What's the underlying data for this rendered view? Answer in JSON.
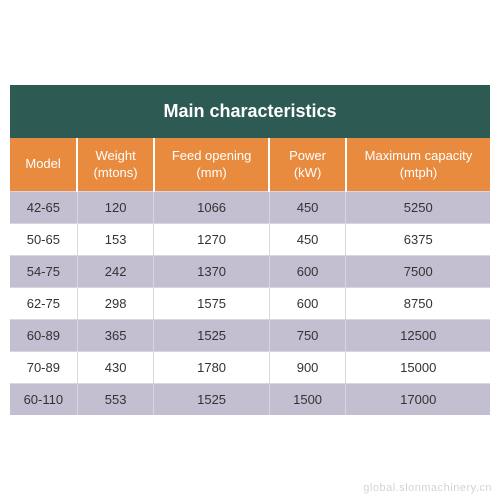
{
  "title": "Main characteristics",
  "title_bg": "#2e5a54",
  "title_color": "#ffffff",
  "title_fontsize": "18px",
  "header_bg": "#e98b3f",
  "header_border": "#ffffff",
  "row_alt_bg": "#c3bfd1",
  "row_bg": "#ffffff",
  "cell_border": "#d9d6e2",
  "columns": [
    {
      "label": "Model",
      "width": "14%"
    },
    {
      "label": "Weight (mtons)",
      "width": "16%"
    },
    {
      "label": "Feed opening (mm)",
      "width": "24%"
    },
    {
      "label": "Power (kW)",
      "width": "16%"
    },
    {
      "label": "Maximum capacity (mtph)",
      "width": "30%"
    }
  ],
  "rows": [
    [
      "42-65",
      "120",
      "1066",
      "450",
      "5250"
    ],
    [
      "50-65",
      "153",
      "1270",
      "450",
      "6375"
    ],
    [
      "54-75",
      "242",
      "1370",
      "600",
      "7500"
    ],
    [
      "62-75",
      "298",
      "1575",
      "600",
      "8750"
    ],
    [
      "60-89",
      "365",
      "1525",
      "750",
      "12500"
    ],
    [
      "70-89",
      "430",
      "1780",
      "900",
      "15000"
    ],
    [
      "60-110",
      "553",
      "1525",
      "1500",
      "17000"
    ]
  ],
  "watermark": "global.slonmachinery.cn"
}
